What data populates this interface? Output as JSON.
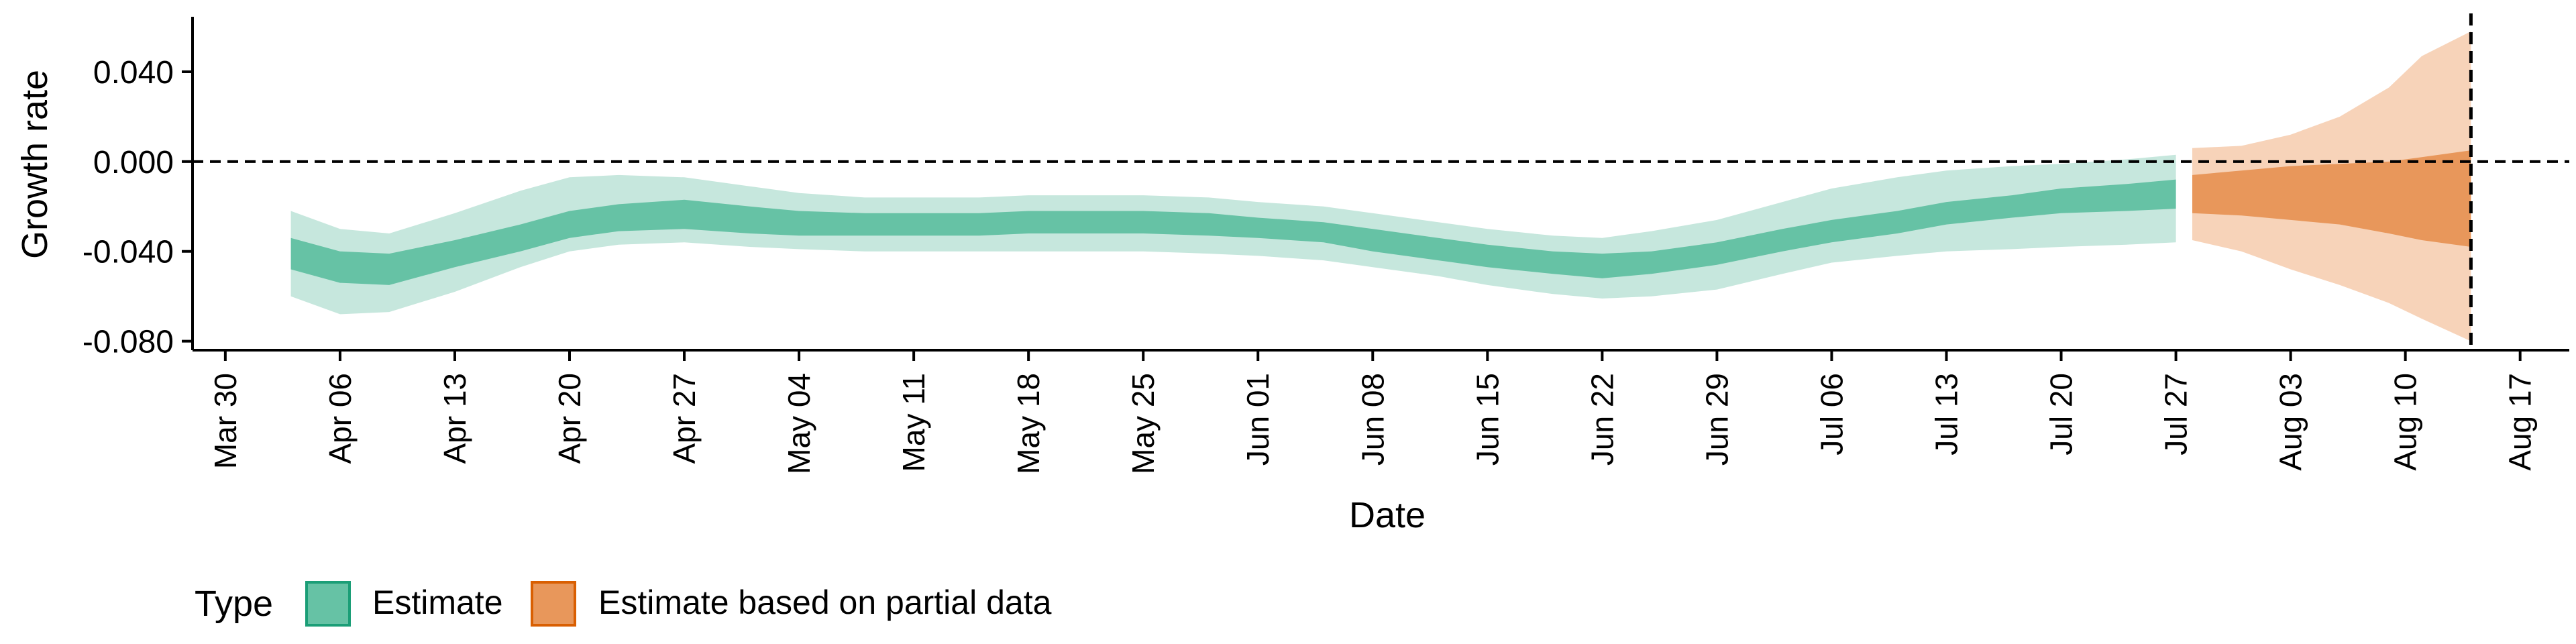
{
  "chart_data": {
    "type": "area",
    "xlabel": "Date",
    "ylabel": "Growth rate",
    "x_ticks": [
      "2020-03-30",
      "2020-04-06",
      "2020-04-13",
      "2020-04-20",
      "2020-04-27",
      "2020-05-04",
      "2020-05-11",
      "2020-05-18",
      "2020-05-25",
      "2020-06-01",
      "2020-06-08",
      "2020-06-15",
      "2020-06-22",
      "2020-06-29",
      "2020-07-06",
      "2020-07-13",
      "2020-07-20",
      "2020-07-27",
      "2020-08-03",
      "2020-08-10",
      "2020-08-17"
    ],
    "x_tick_labels": [
      "Mar 30",
      "Apr 06",
      "Apr 13",
      "Apr 20",
      "Apr 27",
      "May 04",
      "May 11",
      "May 18",
      "May 25",
      "Jun 01",
      "Jun 08",
      "Jun 15",
      "Jun 22",
      "Jun 29",
      "Jul 06",
      "Jul 13",
      "Jul 20",
      "Jul 27",
      "Aug 03",
      "Aug 10",
      "Aug 17"
    ],
    "y_ticks": [
      -0.08,
      -0.04,
      0.0,
      0.04
    ],
    "y_tick_labels": [
      "-0.080",
      "-0.040",
      "0.000",
      "0.040"
    ],
    "xlim": [
      "2020-03-28",
      "2020-08-20"
    ],
    "ylim": [
      -0.084,
      0.063
    ],
    "hline_y": 0.0,
    "vline_x": "2020-08-14",
    "grid": false,
    "legend": {
      "title": "Type",
      "position": "bottom-left",
      "entries": [
        "Estimate",
        "Estimate based on partial data"
      ]
    },
    "colors": {
      "estimate_inner": "#66c2a5",
      "estimate_outer": "#c6e7dd",
      "estimate_border": "#1b9e77",
      "partial_inner": "#e8975b",
      "partial_outer": "#f7d3b9",
      "partial_border": "#d95f02"
    },
    "series": [
      {
        "name": "Estimate",
        "x": [
          "2020-04-03",
          "2020-04-06",
          "2020-04-09",
          "2020-04-13",
          "2020-04-17",
          "2020-04-20",
          "2020-04-23",
          "2020-04-27",
          "2020-05-01",
          "2020-05-04",
          "2020-05-08",
          "2020-05-11",
          "2020-05-15",
          "2020-05-18",
          "2020-05-22",
          "2020-05-25",
          "2020-05-29",
          "2020-06-01",
          "2020-06-05",
          "2020-06-08",
          "2020-06-12",
          "2020-06-15",
          "2020-06-19",
          "2020-06-22",
          "2020-06-25",
          "2020-06-29",
          "2020-07-03",
          "2020-07-06",
          "2020-07-10",
          "2020-07-13",
          "2020-07-17",
          "2020-07-20",
          "2020-07-24",
          "2020-07-27"
        ],
        "lower90": [
          -0.06,
          -0.068,
          -0.067,
          -0.058,
          -0.047,
          -0.04,
          -0.037,
          -0.036,
          -0.038,
          -0.039,
          -0.04,
          -0.04,
          -0.04,
          -0.04,
          -0.04,
          -0.04,
          -0.041,
          -0.042,
          -0.044,
          -0.047,
          -0.051,
          -0.055,
          -0.059,
          -0.061,
          -0.06,
          -0.057,
          -0.05,
          -0.045,
          -0.042,
          -0.04,
          -0.039,
          -0.038,
          -0.037,
          -0.036
        ],
        "lower50": [
          -0.048,
          -0.054,
          -0.055,
          -0.047,
          -0.04,
          -0.034,
          -0.031,
          -0.03,
          -0.032,
          -0.033,
          -0.033,
          -0.033,
          -0.033,
          -0.032,
          -0.032,
          -0.032,
          -0.033,
          -0.034,
          -0.036,
          -0.04,
          -0.044,
          -0.047,
          -0.05,
          -0.052,
          -0.05,
          -0.046,
          -0.04,
          -0.036,
          -0.032,
          -0.028,
          -0.025,
          -0.023,
          -0.022,
          -0.021
        ],
        "upper50": [
          -0.034,
          -0.04,
          -0.041,
          -0.035,
          -0.028,
          -0.022,
          -0.019,
          -0.017,
          -0.02,
          -0.022,
          -0.023,
          -0.023,
          -0.023,
          -0.022,
          -0.022,
          -0.022,
          -0.023,
          -0.025,
          -0.027,
          -0.03,
          -0.034,
          -0.037,
          -0.04,
          -0.041,
          -0.04,
          -0.036,
          -0.03,
          -0.026,
          -0.022,
          -0.018,
          -0.015,
          -0.012,
          -0.01,
          -0.008
        ],
        "upper90": [
          -0.022,
          -0.03,
          -0.032,
          -0.023,
          -0.013,
          -0.007,
          -0.006,
          -0.007,
          -0.011,
          -0.014,
          -0.016,
          -0.016,
          -0.016,
          -0.015,
          -0.015,
          -0.015,
          -0.016,
          -0.018,
          -0.02,
          -0.023,
          -0.027,
          -0.03,
          -0.033,
          -0.034,
          -0.031,
          -0.026,
          -0.018,
          -0.012,
          -0.007,
          -0.004,
          -0.002,
          -0.001,
          0.001,
          0.003
        ]
      },
      {
        "name": "Estimate based on partial data",
        "x": [
          "2020-07-28",
          "2020-07-31",
          "2020-08-03",
          "2020-08-06",
          "2020-08-09",
          "2020-08-11",
          "2020-08-14"
        ],
        "lower90": [
          -0.035,
          -0.04,
          -0.048,
          -0.055,
          -0.063,
          -0.07,
          -0.08
        ],
        "lower50": [
          -0.023,
          -0.024,
          -0.026,
          -0.028,
          -0.032,
          -0.035,
          -0.038
        ],
        "upper50": [
          -0.006,
          -0.004,
          -0.002,
          -0.001,
          0.0,
          0.002,
          0.005
        ],
        "upper90": [
          0.006,
          0.007,
          0.012,
          0.02,
          0.033,
          0.047,
          0.058
        ]
      }
    ]
  }
}
